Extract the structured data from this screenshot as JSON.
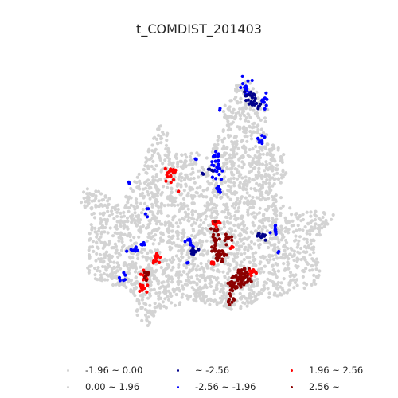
{
  "title": "t_COMDIST_201403",
  "legend": {
    "items": [
      {
        "label": "-1.96 ~ 0.00",
        "color": "#d3d3d3"
      },
      {
        "label": "0.00 ~ 1.96",
        "color": "#d3d3d3"
      },
      {
        "label": "~ -2.56",
        "color": "#00008b"
      },
      {
        "label": "-2.56 ~ -1.96",
        "color": "#0000ff"
      },
      {
        "label": "1.96 ~ 2.56",
        "color": "#ff0000"
      },
      {
        "label": "2.56 ~",
        "color": "#8b0000"
      }
    ]
  }
}
